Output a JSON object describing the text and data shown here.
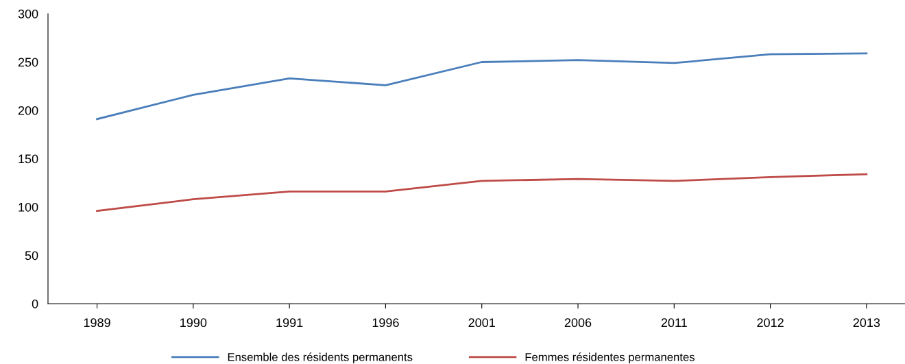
{
  "chart_data": {
    "type": "line",
    "categories": [
      "1989",
      "1990",
      "1991",
      "1996",
      "2001",
      "2006",
      "2011",
      "2012",
      "2013"
    ],
    "series": [
      {
        "name": "Ensemble des résidents permanents",
        "color": "#4a7ebb",
        "values": [
          191,
          216,
          233,
          226,
          250,
          252,
          249,
          258,
          259
        ]
      },
      {
        "name": "Femmes résidentes permanentes",
        "color": "#be4b48",
        "values": [
          96,
          108,
          116,
          116,
          127,
          129,
          127,
          131,
          134
        ]
      }
    ],
    "ylim": [
      0,
      300
    ],
    "yticks": [
      0,
      50,
      100,
      150,
      200,
      250,
      300
    ],
    "grid": false,
    "legend": "bottom",
    "marker": "none",
    "line_style": "solid"
  }
}
